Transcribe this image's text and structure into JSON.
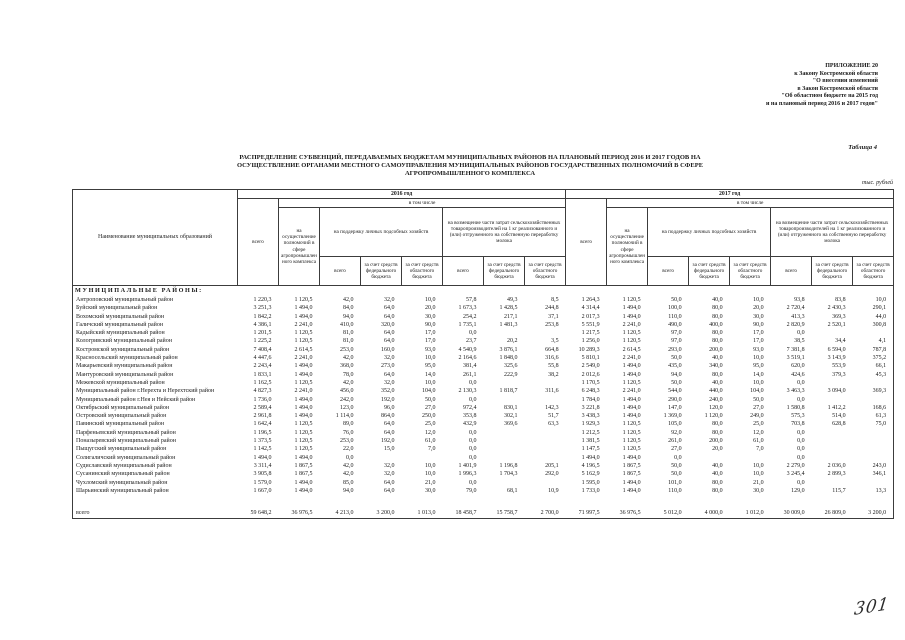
{
  "page": {
    "appendix_lines": "ПРИЛОЖЕНИЕ 20\nк Закону Костромской области\n\"О внесении изменений\nв Закон Костромской области\n\"Об областном бюджете на 2015 год\nи на плановый период 2016 и 2017 годов\"",
    "table_label": "Таблица 4",
    "title": "РАСПРЕДЕЛЕНИЕ СУБВЕНЦИЙ, ПЕРЕДАВАЕМЫХ БЮДЖЕТАМ МУНИЦИПАЛЬНЫХ РАЙОНОВ НА ПЛАНОВЫЙ ПЕРИОД 2016 И 2017 ГОДОВ НА ОСУЩЕСТВЛЕНИЕ ОРГАНАМИ МЕСТНОГО САМОУПРАВЛЕНИЯ МУНИЦИПАЛЬНЫХ РАЙОНОВ ГОСУДАРСТВЕННЫХ ПОЛНОМОЧИЙ В СФЕРЕ АГРОПРОМЫШЛЕННОГО КОМПЛЕКСА",
    "units_label": "тыс. рублей",
    "handwritten_page_number": "301"
  },
  "table": {
    "headers": {
      "name": "Наименование муниципальных образований",
      "y2016": "2016 год",
      "y2017": "2017 год",
      "including": "в том числе",
      "total": "всего",
      "agro": "на осуществление полномочий в сфере агропромышленного комплекса",
      "lph": "на поддержку личных подсобных хозяйств",
      "milk": "на возмещение части затрат сельскохозяйственных товаропроизводителей на 1 кг реализованного и (или) отгруженного на собственную переработку молока",
      "sub_total": "всего",
      "sub_fed": "за счет средств федерального бюджета",
      "sub_obl": "за счет средств областного бюджета"
    },
    "section_header": "МУНИЦИПАЛЬНЫЕ РАЙОНЫ:",
    "rows": [
      {
        "name": "Антроповский муниципальный район",
        "values": [
          "1 220,3",
          "1 120,5",
          "42,0",
          "32,0",
          "10,0",
          "57,8",
          "49,3",
          "8,5",
          "1 264,3",
          "1 120,5",
          "50,0",
          "40,0",
          "10,0",
          "93,8",
          "83,8",
          "10,0"
        ]
      },
      {
        "name": "Буйский муниципальный район",
        "values": [
          "3 251,3",
          "1 494,0",
          "84,0",
          "64,0",
          "20,0",
          "1 673,3",
          "1 428,5",
          "244,8",
          "4 314,4",
          "1 494,0",
          "100,0",
          "80,0",
          "20,0",
          "2 720,4",
          "2 430,3",
          "290,1"
        ]
      },
      {
        "name": "Вохомский муниципальный район",
        "values": [
          "1 842,2",
          "1 494,0",
          "94,0",
          "64,0",
          "30,0",
          "254,2",
          "217,1",
          "37,1",
          "2 017,3",
          "1 494,0",
          "110,0",
          "80,0",
          "30,0",
          "413,3",
          "369,3",
          "44,0"
        ]
      },
      {
        "name": "Галичский муниципальный район",
        "values": [
          "4 386,1",
          "2 241,0",
          "410,0",
          "320,0",
          "90,0",
          "1 735,1",
          "1 481,3",
          "253,8",
          "5 551,9",
          "2 241,0",
          "490,0",
          "400,0",
          "90,0",
          "2 820,9",
          "2 520,1",
          "300,8"
        ]
      },
      {
        "name": "Кадыйский муниципальный район",
        "values": [
          "1 201,5",
          "1 120,5",
          "81,0",
          "64,0",
          "17,0",
          "0,0",
          "",
          "",
          "1 217,5",
          "1 120,5",
          "97,0",
          "80,0",
          "17,0",
          "0,0",
          "",
          ""
        ]
      },
      {
        "name": "Кологривский муниципальный район",
        "values": [
          "1 225,2",
          "1 120,5",
          "81,0",
          "64,0",
          "17,0",
          "23,7",
          "20,2",
          "3,5",
          "1 256,0",
          "1 120,5",
          "97,0",
          "80,0",
          "17,0",
          "38,5",
          "34,4",
          "4,1"
        ]
      },
      {
        "name": "Костромской муниципальный район",
        "values": [
          "7 408,4",
          "2 614,5",
          "253,0",
          "160,0",
          "93,0",
          "4 540,9",
          "3 876,1",
          "664,8",
          "10 289,3",
          "2 614,5",
          "293,0",
          "200,0",
          "93,0",
          "7 381,8",
          "6 594,0",
          "787,8"
        ]
      },
      {
        "name": "Красносельский муниципальный район",
        "values": [
          "4 447,6",
          "2 241,0",
          "42,0",
          "32,0",
          "10,0",
          "2 164,6",
          "1 848,0",
          "316,6",
          "5 810,1",
          "2 241,0",
          "50,0",
          "40,0",
          "10,0",
          "3 519,1",
          "3 143,9",
          "375,2"
        ]
      },
      {
        "name": "Макарьевский муниципальный район",
        "values": [
          "2 243,4",
          "1 494,0",
          "368,0",
          "273,0",
          "95,0",
          "381,4",
          "325,6",
          "55,8",
          "2 549,0",
          "1 494,0",
          "435,0",
          "340,0",
          "95,0",
          "620,0",
          "553,9",
          "66,1"
        ]
      },
      {
        "name": "Мантуровский муниципальный район",
        "values": [
          "1 833,1",
          "1 494,0",
          "78,0",
          "64,0",
          "14,0",
          "261,1",
          "222,9",
          "38,2",
          "2 012,6",
          "1 494,0",
          "94,0",
          "80,0",
          "14,0",
          "424,6",
          "379,3",
          "45,3"
        ]
      },
      {
        "name": "Межевской муниципальный район",
        "values": [
          "1 162,5",
          "1 120,5",
          "42,0",
          "32,0",
          "10,0",
          "0,0",
          "",
          "",
          "1 170,5",
          "1 120,5",
          "50,0",
          "40,0",
          "10,0",
          "0,0",
          "",
          ""
        ]
      },
      {
        "name": "Муниципальный район г.Нерехта и Нерехтский район",
        "values": [
          "4 827,3",
          "2 241,0",
          "456,0",
          "352,0",
          "104,0",
          "2 130,3",
          "1 818,7",
          "311,6",
          "6 248,3",
          "2 241,0",
          "544,0",
          "440,0",
          "104,0",
          "3 463,3",
          "3 094,0",
          "369,3"
        ]
      },
      {
        "name": "Муниципальный район г.Нея и Нейский район",
        "values": [
          "1 736,0",
          "1 494,0",
          "242,0",
          "192,0",
          "50,0",
          "0,0",
          "",
          "",
          "1 784,0",
          "1 494,0",
          "290,0",
          "240,0",
          "50,0",
          "0,0",
          "",
          ""
        ]
      },
      {
        "name": "Октябрьский муниципальный район",
        "values": [
          "2 589,4",
          "1 494,0",
          "123,0",
          "96,0",
          "27,0",
          "972,4",
          "830,1",
          "142,3",
          "3 221,8",
          "1 494,0",
          "147,0",
          "120,0",
          "27,0",
          "1 580,8",
          "1 412,2",
          "168,6"
        ]
      },
      {
        "name": "Островский муниципальный район",
        "values": [
          "2 961,8",
          "1 494,0",
          "1 114,0",
          "864,0",
          "250,0",
          "353,8",
          "302,1",
          "51,7",
          "3 438,3",
          "1 494,0",
          "1 369,0",
          "1 120,0",
          "249,0",
          "575,3",
          "514,0",
          "61,3"
        ]
      },
      {
        "name": "Павинский муниципальный район",
        "values": [
          "1 642,4",
          "1 120,5",
          "89,0",
          "64,0",
          "25,0",
          "432,9",
          "369,6",
          "63,3",
          "1 929,3",
          "1 120,5",
          "105,0",
          "80,0",
          "25,0",
          "703,8",
          "628,8",
          "75,0"
        ]
      },
      {
        "name": "Парфеньевский муниципальный район",
        "values": [
          "1 196,5",
          "1 120,5",
          "76,0",
          "64,0",
          "12,0",
          "0,0",
          "",
          "",
          "1 212,5",
          "1 120,5",
          "92,0",
          "80,0",
          "12,0",
          "0,0",
          "",
          ""
        ]
      },
      {
        "name": "Поназыревский муниципальный район",
        "values": [
          "1 373,5",
          "1 120,5",
          "253,0",
          "192,0",
          "61,0",
          "0,0",
          "",
          "",
          "1 381,5",
          "1 120,5",
          "261,0",
          "200,0",
          "61,0",
          "0,0",
          "",
          ""
        ]
      },
      {
        "name": "Пыщугский муниципальный район",
        "values": [
          "1 142,5",
          "1 120,5",
          "22,0",
          "15,0",
          "7,0",
          "0,0",
          "",
          "",
          "1 147,5",
          "1 120,5",
          "27,0",
          "20,0",
          "7,0",
          "0,0",
          "",
          ""
        ]
      },
      {
        "name": "Солигаличский муниципальный район",
        "values": [
          "1 494,0",
          "1 494,0",
          "0,0",
          "",
          "",
          "0,0",
          "",
          "",
          "1 494,0",
          "1 494,0",
          "0,0",
          "",
          "",
          "0,0",
          "",
          ""
        ]
      },
      {
        "name": "Судиславский муниципальный район",
        "values": [
          "3 311,4",
          "1 867,5",
          "42,0",
          "32,0",
          "10,0",
          "1 401,9",
          "1 196,8",
          "205,1",
          "4 196,5",
          "1 867,5",
          "50,0",
          "40,0",
          "10,0",
          "2 279,0",
          "2 036,0",
          "243,0"
        ]
      },
      {
        "name": "Сусанинский муниципальный район",
        "values": [
          "3 905,8",
          "1 867,5",
          "42,0",
          "32,0",
          "10,0",
          "1 996,3",
          "1 704,3",
          "292,0",
          "5 162,9",
          "1 867,5",
          "50,0",
          "40,0",
          "10,0",
          "3 245,4",
          "2 899,3",
          "346,1"
        ]
      },
      {
        "name": "Чухломский муниципальный район",
        "values": [
          "1 579,0",
          "1 494,0",
          "85,0",
          "64,0",
          "21,0",
          "0,0",
          "",
          "",
          "1 595,0",
          "1 494,0",
          "101,0",
          "80,0",
          "21,0",
          "0,0",
          "",
          ""
        ]
      },
      {
        "name": "Шарьинский муниципальный район",
        "values": [
          "1 667,0",
          "1 494,0",
          "94,0",
          "64,0",
          "30,0",
          "79,0",
          "68,1",
          "10,9",
          "1 733,0",
          "1 494,0",
          "110,0",
          "80,0",
          "30,0",
          "129,0",
          "115,7",
          "13,3"
        ]
      }
    ],
    "total_row": {
      "name": "всего",
      "values": [
        "59 648,2",
        "36 976,5",
        "4 213,0",
        "3 200,0",
        "1 013,0",
        "18 458,7",
        "15 758,7",
        "2 700,0",
        "71 997,5",
        "36 976,5",
        "5 012,0",
        "4 000,0",
        "1 012,0",
        "30 009,0",
        "26 809,0",
        "3 200,0"
      ]
    }
  }
}
